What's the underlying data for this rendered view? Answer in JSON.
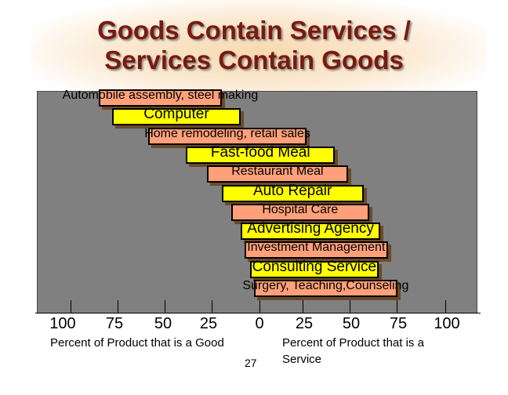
{
  "title": {
    "line1": "Goods Contain Services /",
    "line2": "Services Contain Goods"
  },
  "colors": {
    "title": "#7a1a0c",
    "goods_bar": "#ffff00",
    "services_bar": "#ffa07a",
    "panel": "#808080"
  },
  "items": [
    {
      "label": "Automobile assembly, steel making",
      "kind": "service",
      "from_pct_good": 85,
      "to_pct_good": 20
    },
    {
      "label": "Computer",
      "kind": "good",
      "from_pct_good": 78,
      "to_pct_good": 10
    },
    {
      "label": "Home remodeling, retail sales",
      "kind": "service",
      "from_pct_good": 59,
      "to_pct_good": -25
    },
    {
      "label": "Fast-food Meal",
      "kind": "good",
      "from_pct_good": 39,
      "to_pct_good": -40
    },
    {
      "label": "Restaurant Meal",
      "kind": "service",
      "from_pct_good": 28,
      "to_pct_good": -47
    },
    {
      "label": "Auto Repair",
      "kind": "good",
      "from_pct_good": 20,
      "to_pct_good": -55
    },
    {
      "label": "Hospital Care",
      "kind": "service",
      "from_pct_good": 15,
      "to_pct_good": -58
    },
    {
      "label": "Advertising Agency",
      "kind": "good",
      "from_pct_good": 10,
      "to_pct_good": -64
    },
    {
      "label": "Investment Management",
      "kind": "service",
      "from_pct_good": 8,
      "to_pct_good": -68
    },
    {
      "label": "Consulting Service",
      "kind": "good",
      "from_pct_good": 5,
      "to_pct_good": -63
    },
    {
      "label": "Surgery, Teaching,Counseling",
      "kind": "service",
      "from_pct_good": 3,
      "to_pct_good": -73
    }
  ],
  "axis": {
    "left_ticks": [
      "100",
      "75",
      "50",
      "25",
      "0"
    ],
    "right_ticks": [
      "25",
      "50",
      "75",
      "100"
    ],
    "left_caption": "Percent of Product that is a Good",
    "right_caption_line1": "Percent of Product that is a",
    "right_caption_line2": "Service"
  },
  "page_number": "27"
}
